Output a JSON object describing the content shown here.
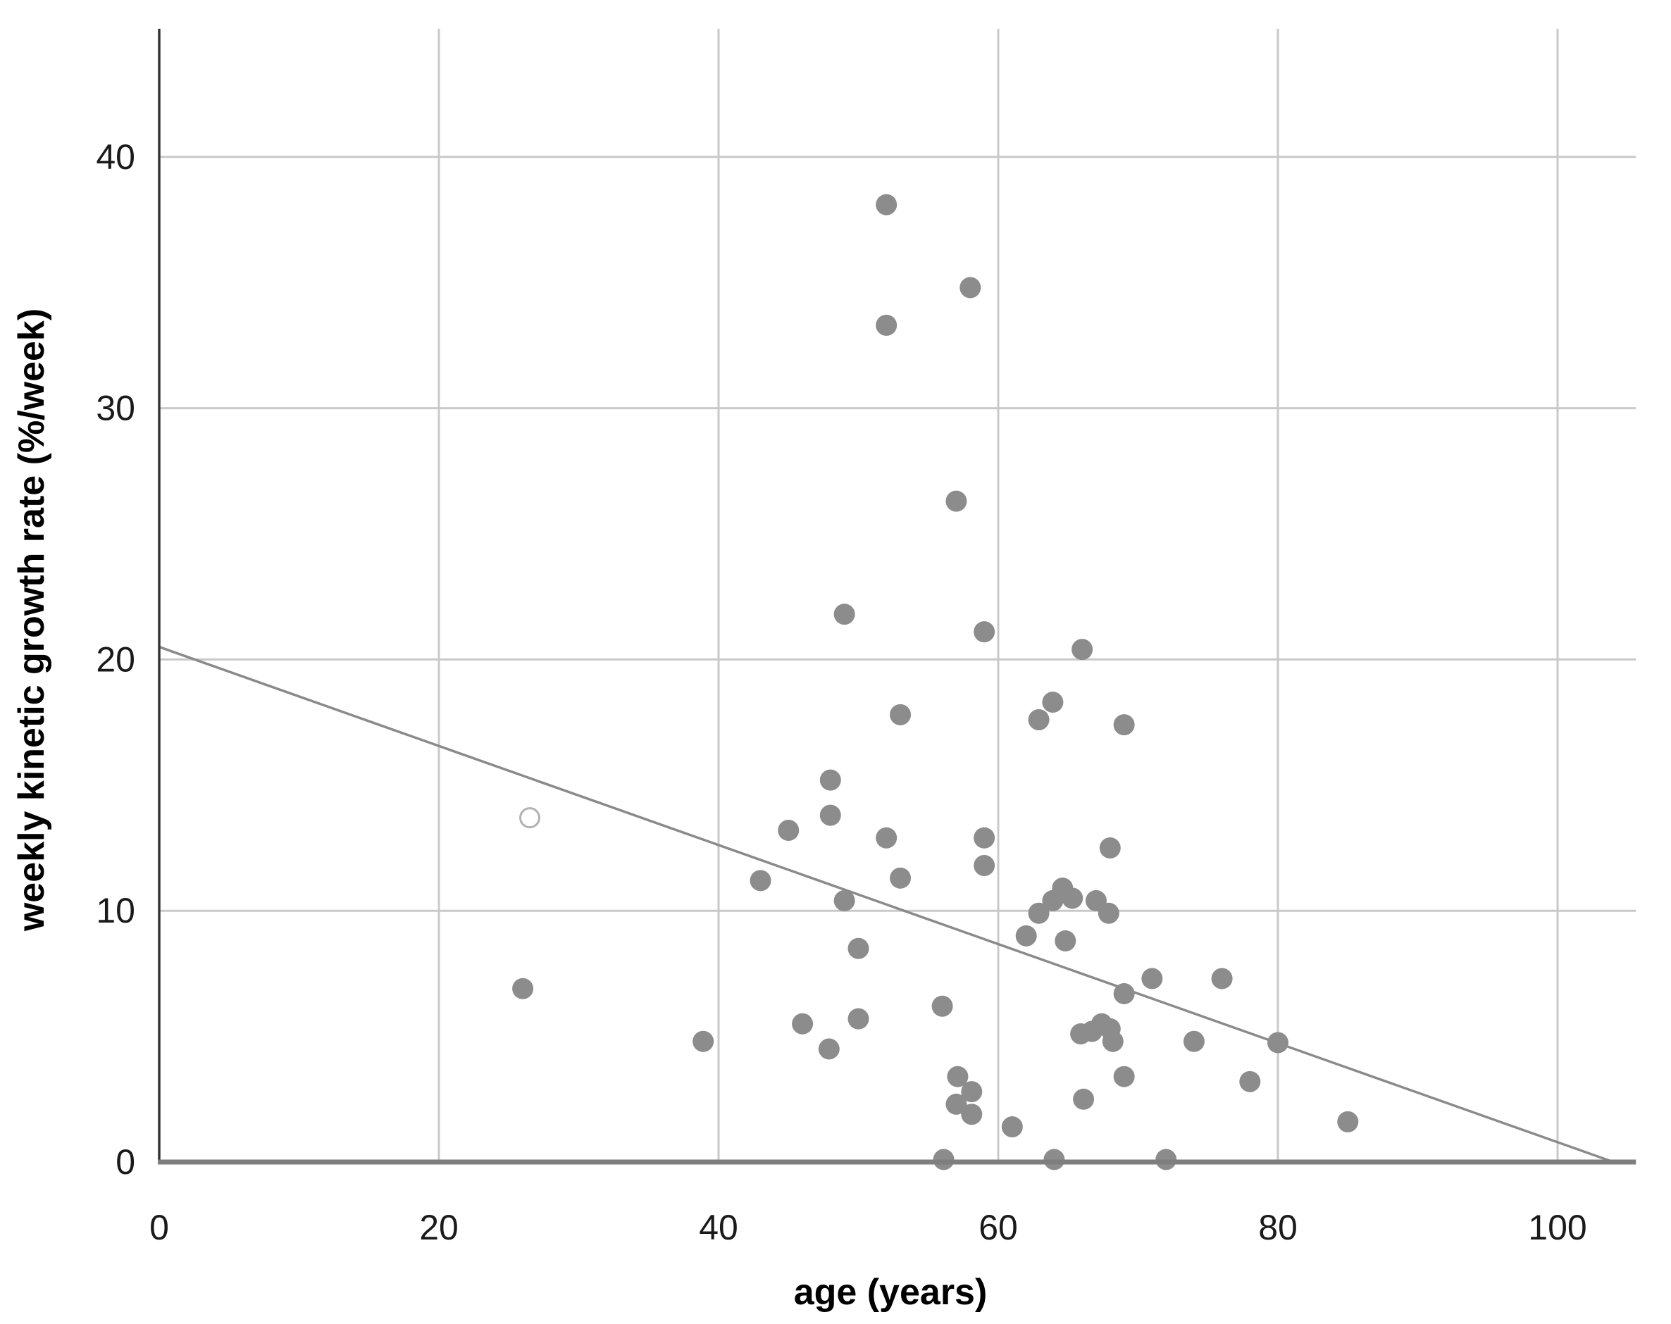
{
  "chart_data": {
    "type": "scatter",
    "title": "",
    "xlabel": "age (years)",
    "ylabel": "weekly kinetic growth rate (%/week)",
    "xlim": [
      0,
      105.6
    ],
    "ylim": [
      0,
      45.1
    ],
    "x_ticks": [
      0,
      20,
      40,
      60,
      80,
      100
    ],
    "y_ticks": [
      0,
      10,
      20,
      30,
      40
    ],
    "grid": true,
    "legend": "none",
    "points": [
      [
        52,
        38.1
      ],
      [
        58,
        34.8
      ],
      [
        52,
        33.3
      ],
      [
        57,
        26.3
      ],
      [
        49,
        21.8
      ],
      [
        59,
        21.1
      ],
      [
        66,
        20.4
      ],
      [
        53,
        17.8
      ],
      [
        63.9,
        18.3
      ],
      [
        62.9,
        17.6
      ],
      [
        69,
        17.4
      ],
      [
        48,
        15.2
      ],
      [
        48,
        13.8
      ],
      [
        45,
        13.2
      ],
      [
        43,
        11.2
      ],
      [
        52,
        12.9
      ],
      [
        53,
        11.3
      ],
      [
        59,
        12.9
      ],
      [
        59,
        11.8
      ],
      [
        49,
        10.4
      ],
      [
        50,
        8.5
      ],
      [
        62,
        9.0
      ],
      [
        64.8,
        8.8
      ],
      [
        68,
        12.5
      ],
      [
        62.9,
        9.9
      ],
      [
        63.9,
        10.4
      ],
      [
        64.6,
        10.9
      ],
      [
        65.3,
        10.5
      ],
      [
        67,
        10.4
      ],
      [
        67.9,
        9.9
      ],
      [
        26,
        6.9
      ],
      [
        38.9,
        4.8
      ],
      [
        46,
        5.5
      ],
      [
        47.9,
        4.5
      ],
      [
        50,
        5.7
      ],
      [
        56,
        6.2
      ],
      [
        57.1,
        3.4
      ],
      [
        58.1,
        2.8
      ],
      [
        57,
        2.3
      ],
      [
        58.1,
        1.9
      ],
      [
        56.1,
        0.1
      ],
      [
        61,
        1.4
      ],
      [
        64,
        0.1
      ],
      [
        66.1,
        2.5
      ],
      [
        69,
        3.4
      ],
      [
        69,
        6.7
      ],
      [
        71,
        7.3
      ],
      [
        72,
        0.1
      ],
      [
        74,
        4.8
      ],
      [
        76,
        7.3
      ],
      [
        78,
        3.2
      ],
      [
        80,
        4.75
      ],
      [
        85,
        1.6
      ],
      [
        65.9,
        5.1
      ],
      [
        66.7,
        5.2
      ],
      [
        67.4,
        5.5
      ],
      [
        68,
        5.3
      ],
      [
        68.2,
        4.8
      ]
    ],
    "hollow_point": {
      "x": 26.5,
      "y": 13.7
    },
    "trend_line": {
      "x1": 0,
      "y1": 20.5,
      "x2": 104,
      "y2": 0
    },
    "colors": {
      "point_fill": "#8c8c8c",
      "hollow_stroke": "#b2b2b2",
      "gridline": "#c9c9c9",
      "x_axis_line": "#7e7e7e",
      "y_axis_line": "#333333",
      "trend_line": "#8a8a8a",
      "label_text": "#1a1a1a"
    }
  }
}
